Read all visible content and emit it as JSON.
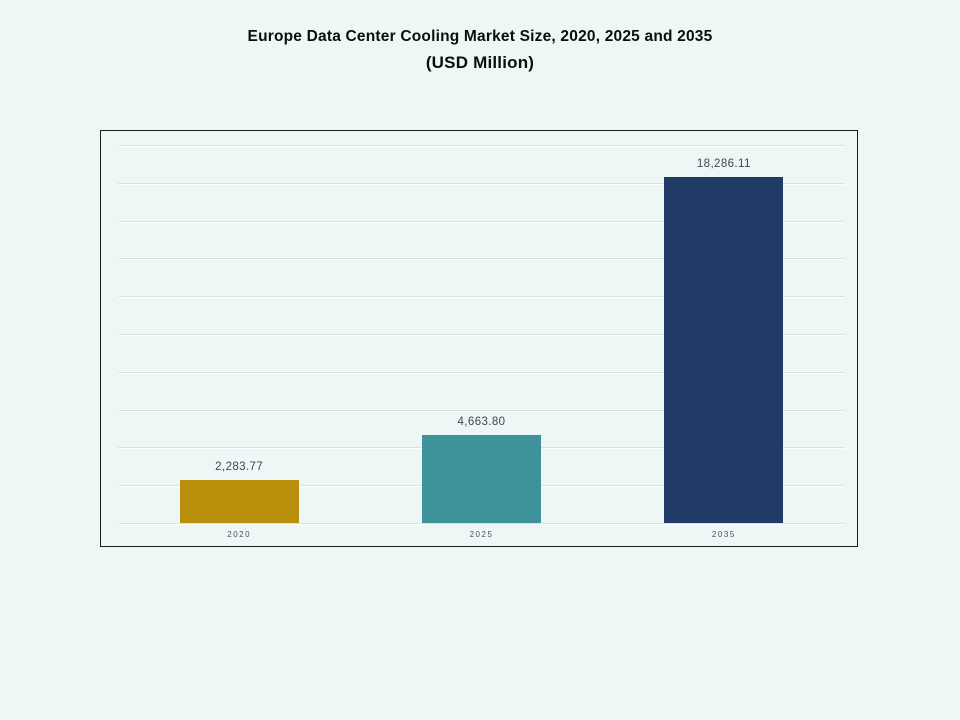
{
  "page": {
    "background": "#EDF7F5"
  },
  "title": {
    "line1": "Europe Data Center Cooling Market Size, 2020, 2025 and 2035",
    "line2": "(USD Million)"
  },
  "chart_data": {
    "type": "bar",
    "title": "Europe Data Center Cooling Market Size, 2020, 2025 and 2035 (USD Million)",
    "categories": [
      "2020",
      "2025",
      "2035"
    ],
    "values": [
      2283.77,
      4663.8,
      18286.11
    ],
    "value_labels": [
      "2,283.77",
      "4,663.80",
      "18,286.11"
    ],
    "bar_colors": [
      "#B8900C",
      "#3D929B",
      "#213A66"
    ],
    "xlabel": "",
    "ylabel": "",
    "ylim": [
      0,
      20000
    ],
    "gridline_step": 2000,
    "grid": true,
    "legend": false,
    "gridline_color": "#D8E2E0",
    "frame_border_color": "#1A1A1A",
    "value_label_color": "#3E4751",
    "tick_label_color": "#44546A"
  }
}
